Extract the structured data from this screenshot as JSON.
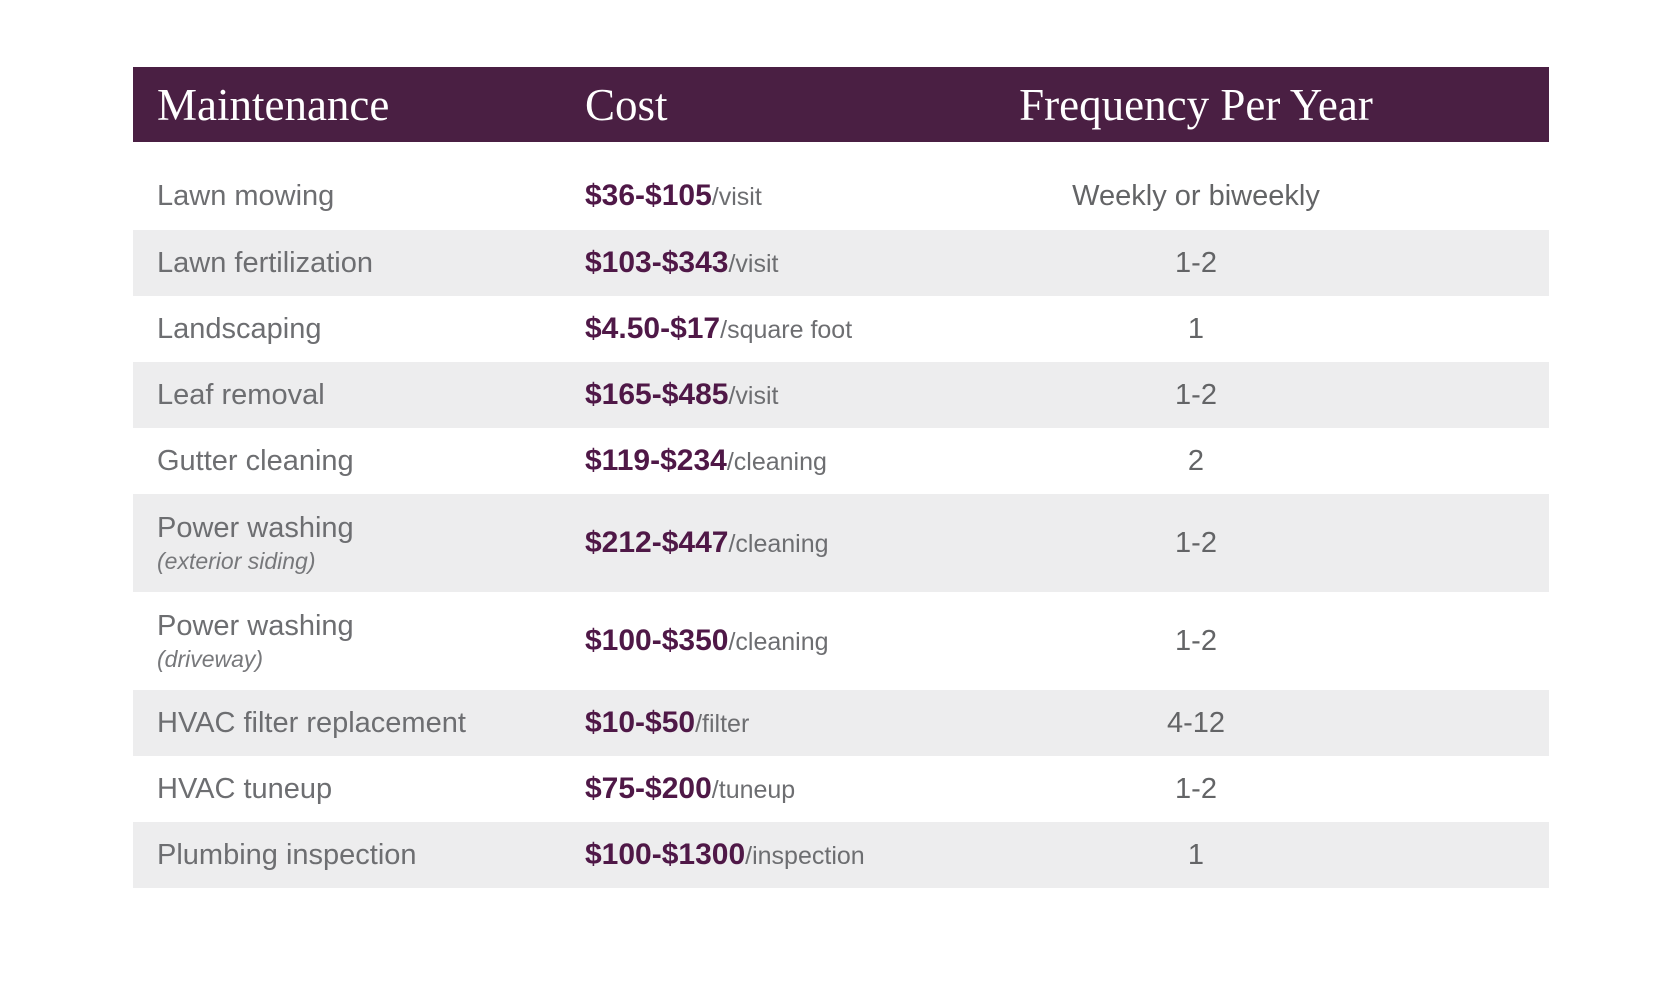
{
  "theme": {
    "header_bg": "#4a1f43",
    "header_text": "#ffffff",
    "price_color": "#4f1847",
    "row_alt_bg": "#ededee",
    "body_text": "#6d6e71",
    "page_bg": "#ffffff"
  },
  "chart_data": {
    "type": "table",
    "title": "",
    "columns": [
      "Maintenance",
      "Cost",
      "Frequency Per Year"
    ],
    "rows": [
      {
        "name": "Lawn mowing",
        "sub": "",
        "cost": "$36-$105",
        "unit": "/visit",
        "freq": "Weekly or biweekly"
      },
      {
        "name": "Lawn fertilization",
        "sub": "",
        "cost": "$103-$343",
        "unit": "/visit",
        "freq": "1-2"
      },
      {
        "name": "Landscaping",
        "sub": "",
        "cost": "$4.50-$17",
        "unit": "/square foot",
        "freq": "1"
      },
      {
        "name": "Leaf removal",
        "sub": "",
        "cost": "$165-$485",
        "unit": "/visit",
        "freq": "1-2"
      },
      {
        "name": "Gutter cleaning",
        "sub": "",
        "cost": "$119-$234",
        "unit": "/cleaning",
        "freq": "2"
      },
      {
        "name": "Power washing",
        "sub": "(exterior siding)",
        "cost": "$212-$447",
        "unit": "/cleaning",
        "freq": "1-2"
      },
      {
        "name": "Power washing",
        "sub": "(driveway)",
        "cost": "$100-$350",
        "unit": "/cleaning",
        "freq": "1-2"
      },
      {
        "name": "HVAC filter replacement",
        "sub": "",
        "cost": "$10-$50",
        "unit": "/filter",
        "freq": "4-12"
      },
      {
        "name": "HVAC tuneup",
        "sub": "",
        "cost": "$75-$200",
        "unit": "/tuneup",
        "freq": "1-2"
      },
      {
        "name": "Plumbing inspection",
        "sub": "",
        "cost": "$100-$1300",
        "unit": "/inspection",
        "freq": "1"
      }
    ]
  }
}
